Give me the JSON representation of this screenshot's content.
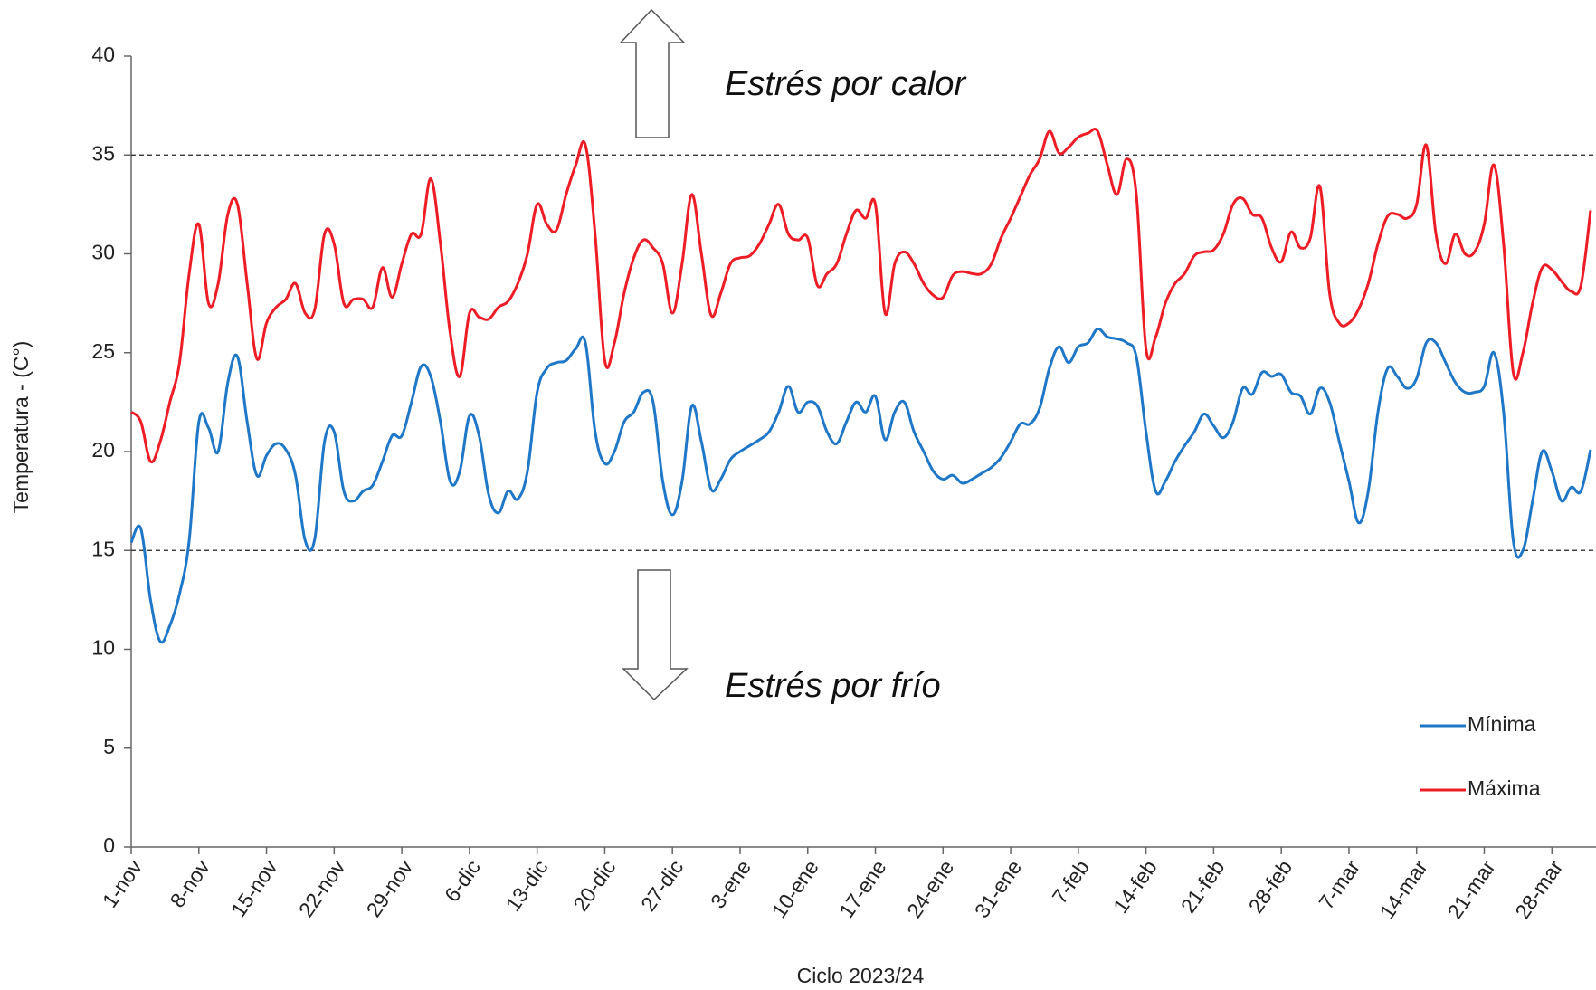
{
  "chart_data": {
    "type": "line",
    "title_annotations": [
      "Estrés por calor",
      "Estrés por frío"
    ],
    "xlabel": "Ciclo 2023/24",
    "ylabel": "Temperatura - (C°)",
    "categories": [
      "1-nov",
      null,
      null,
      null,
      null,
      null,
      null,
      "8-nov",
      null,
      null,
      null,
      null,
      null,
      null,
      "15-nov",
      null,
      null,
      null,
      null,
      null,
      null,
      "22-nov",
      null,
      null,
      null,
      null,
      null,
      null,
      "29-nov",
      null,
      null,
      null,
      null,
      null,
      null,
      "6-dic",
      null,
      null,
      null,
      null,
      null,
      null,
      "13-dic",
      null,
      null,
      null,
      null,
      null,
      null,
      "20-dic",
      null,
      null,
      null,
      null,
      null,
      null,
      "27-dic",
      null,
      null,
      null,
      null,
      null,
      null,
      "3-ene",
      null,
      null,
      null,
      null,
      null,
      null,
      "10-ene",
      null,
      null,
      null,
      null,
      null,
      null,
      "17-ene",
      null,
      null,
      null,
      null,
      null,
      null,
      "24-ene",
      null,
      null,
      null,
      null,
      null,
      null,
      "31-ene",
      null,
      null,
      null,
      null,
      null,
      null,
      "7-feb",
      null,
      null,
      null,
      null,
      null,
      null,
      "14-feb",
      null,
      null,
      null,
      null,
      null,
      null,
      "21-feb",
      null,
      null,
      null,
      null,
      null,
      null,
      "28-feb",
      null,
      null,
      null,
      null,
      null,
      null,
      "7-mar",
      null,
      null,
      null,
      null,
      null,
      null,
      "14-mar",
      null,
      null,
      null,
      null,
      null,
      null,
      "21-mar",
      null,
      null,
      null,
      null,
      null,
      null,
      "28-mar",
      null,
      null,
      null,
      null
    ],
    "series": [
      {
        "name": "Mínima",
        "color": "#1f77c8",
        "values": [
          15.4,
          16.1,
          12.5,
          10.4,
          11.2,
          12.8,
          15.5,
          21.5,
          21.2,
          20.0,
          23.5,
          24.8,
          21.5,
          18.8,
          19.8,
          20.4,
          20.1,
          18.8,
          15.5,
          15.6,
          20.5,
          21.0,
          18.0,
          17.5,
          18.0,
          18.3,
          19.5,
          20.8,
          20.8,
          22.5,
          24.3,
          23.8,
          21.5,
          18.5,
          19.0,
          21.8,
          20.8,
          17.8,
          16.9,
          18.0,
          17.6,
          19.0,
          23.0,
          24.2,
          24.5,
          24.6,
          25.2,
          25.5,
          21.0,
          19.4,
          20.0,
          21.5,
          22.0,
          23.0,
          22.5,
          18.5,
          16.8,
          18.5,
          22.3,
          20.5,
          18.1,
          18.6,
          19.6,
          20.0,
          20.3,
          20.6,
          21.0,
          22.0,
          23.3,
          22.0,
          22.5,
          22.3,
          21.0,
          20.4,
          21.5,
          22.5,
          22.0,
          22.8,
          20.6,
          22.0,
          22.5,
          21.0,
          20.0,
          19.0,
          18.6,
          18.8,
          18.4,
          18.6,
          18.9,
          19.2,
          19.7,
          20.5,
          21.4,
          21.4,
          22.2,
          24.2,
          25.3,
          24.5,
          25.3,
          25.5,
          26.2,
          25.8,
          25.7,
          25.5,
          24.8,
          21.0,
          18.0,
          18.5,
          19.5,
          20.3,
          21.0,
          21.9,
          21.3,
          20.7,
          21.5,
          23.2,
          22.9,
          24.0,
          23.8,
          23.9,
          23.0,
          22.8,
          21.9,
          23.2,
          22.5,
          20.5,
          18.5,
          16.4,
          18.0,
          22.0,
          24.2,
          23.8,
          23.2,
          23.7,
          25.5,
          25.5,
          24.5,
          23.5,
          23.0,
          23.0,
          23.3,
          25.0,
          22.0,
          15.5,
          15.0,
          17.5,
          20.0,
          19.0,
          17.5,
          18.2,
          18.0,
          20.1
        ]
      },
      {
        "name": "Máxima",
        "color": "#ee1c25",
        "values": [
          22.0,
          21.5,
          19.5,
          20.5,
          22.5,
          24.5,
          29.0,
          31.5,
          27.5,
          28.5,
          32.0,
          32.5,
          28.5,
          24.7,
          26.5,
          27.3,
          27.7,
          28.5,
          27.0,
          27.2,
          31.0,
          30.5,
          27.5,
          27.7,
          27.7,
          27.3,
          29.3,
          27.8,
          29.5,
          31.0,
          31.0,
          33.8,
          30.5,
          26.0,
          23.8,
          27.0,
          26.8,
          26.7,
          27.3,
          27.6,
          28.5,
          30.0,
          32.5,
          31.5,
          31.2,
          33.0,
          34.5,
          35.5,
          31.0,
          24.6,
          25.5,
          28.0,
          29.8,
          30.7,
          30.3,
          29.5,
          27.0,
          29.5,
          33.0,
          30.0,
          26.9,
          28.0,
          29.5,
          29.8,
          29.9,
          30.5,
          31.5,
          32.5,
          31.0,
          30.7,
          30.8,
          28.4,
          29.0,
          29.5,
          31.0,
          32.2,
          31.8,
          32.5,
          27.0,
          29.5,
          30.1,
          29.5,
          28.5,
          27.9,
          27.8,
          28.9,
          29.1,
          29.0,
          29.0,
          29.5,
          30.8,
          31.8,
          32.9,
          34.0,
          34.8,
          36.2,
          35.1,
          35.4,
          35.9,
          36.1,
          36.2,
          34.5,
          33.0,
          34.8,
          33.0,
          25.2,
          25.8,
          27.5,
          28.5,
          29.0,
          29.9,
          30.1,
          30.2,
          31.0,
          32.5,
          32.8,
          32.0,
          31.8,
          30.3,
          29.6,
          31.1,
          30.3,
          30.8,
          33.4,
          28.0,
          26.5,
          26.5,
          27.2,
          28.5,
          30.5,
          31.9,
          32.0,
          31.8,
          32.5,
          35.5,
          31.0,
          29.5,
          31.0,
          30.0,
          30.1,
          31.5,
          34.5,
          30.5,
          24.0,
          25.0,
          27.5,
          29.3,
          29.2,
          28.6,
          28.1,
          28.4,
          32.2
        ]
      }
    ],
    "ylim": [
      0,
      40
    ],
    "yticks": [
      0,
      5,
      10,
      15,
      20,
      25,
      30,
      35,
      40
    ],
    "hlines": [
      35,
      15
    ],
    "grid": false,
    "legend": "lower right"
  }
}
